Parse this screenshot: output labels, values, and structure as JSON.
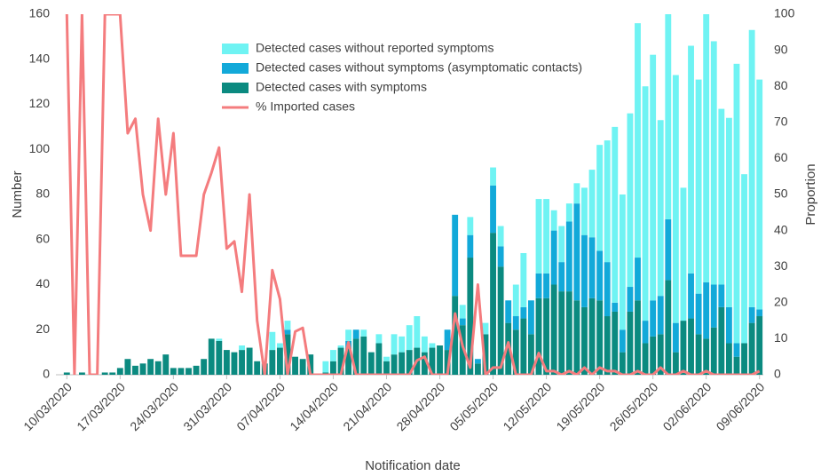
{
  "chart_data": {
    "type": "stacked-bar-line",
    "xlabel": "Notification date",
    "ylabel": "Number",
    "y2label": "Proportion",
    "categories": [
      "10/03/2020",
      null,
      null,
      null,
      null,
      null,
      null,
      "17/03/2020",
      null,
      null,
      null,
      null,
      null,
      null,
      "24/03/2020",
      null,
      null,
      null,
      null,
      null,
      null,
      "31/03/2020",
      null,
      null,
      null,
      null,
      null,
      null,
      "07/04/2020",
      null,
      null,
      null,
      null,
      null,
      null,
      "14/04/2020",
      null,
      null,
      null,
      null,
      null,
      null,
      "21/04/2020",
      null,
      null,
      null,
      null,
      null,
      null,
      "28/04/2020",
      null,
      null,
      null,
      null,
      null,
      null,
      "05/05/2020",
      null,
      null,
      null,
      null,
      null,
      null,
      "12/05/2020",
      null,
      null,
      null,
      null,
      null,
      null,
      "19/05/2020",
      null,
      null,
      null,
      null,
      null,
      null,
      "26/05/2020",
      null,
      null,
      null,
      null,
      null,
      null,
      "02/06/2020",
      null,
      null,
      null,
      null,
      null,
      null,
      "09/06/2020"
    ],
    "series": [
      {
        "name": "Detected cases with symptoms",
        "color": "#0b8a80",
        "values": [
          1,
          0,
          1,
          0,
          0,
          1,
          1,
          3,
          7,
          4,
          5,
          7,
          6,
          9,
          3,
          3,
          3,
          4,
          7,
          16,
          15,
          11,
          10,
          11,
          12,
          6,
          5,
          11,
          12,
          18,
          8,
          7,
          9,
          0,
          1,
          6,
          12,
          12,
          16,
          17,
          10,
          14,
          6,
          9,
          10,
          11,
          12,
          10,
          12,
          13,
          11,
          35,
          22,
          52,
          5,
          18,
          63,
          48,
          23,
          20,
          25,
          18,
          34,
          34,
          40,
          37,
          37,
          33,
          30,
          34,
          33,
          26,
          28,
          10,
          28,
          33,
          14,
          17,
          18,
          42,
          10,
          24,
          25,
          18,
          16,
          21,
          30,
          14,
          8,
          14,
          23,
          26
        ]
      },
      {
        "name": "Detected cases without symptoms (asymptomatic contacts)",
        "color": "#12a9d9",
        "values": [
          0,
          0,
          0,
          0,
          0,
          0,
          0,
          0,
          0,
          0,
          0,
          0,
          0,
          0,
          0,
          0,
          0,
          0,
          0,
          0,
          0,
          0,
          0,
          0,
          0,
          0,
          0,
          0,
          0,
          2,
          0,
          0,
          0,
          0,
          0,
          0,
          0,
          3,
          4,
          0,
          0,
          0,
          0,
          0,
          0,
          0,
          0,
          0,
          0,
          0,
          9,
          36,
          3,
          10,
          2,
          0,
          21,
          9,
          10,
          6,
          5,
          15,
          11,
          11,
          24,
          13,
          31,
          43,
          32,
          27,
          22,
          24,
          4,
          10,
          11,
          19,
          10,
          16,
          17,
          27,
          13,
          0,
          20,
          18,
          25,
          19,
          10,
          16,
          6,
          0,
          7,
          3
        ]
      },
      {
        "name": "Detected cases without reported symptoms",
        "color": "#6ff3f3",
        "values": [
          0,
          0,
          0,
          0,
          0,
          0,
          0,
          0,
          0,
          0,
          0,
          0,
          0,
          0,
          0,
          0,
          0,
          0,
          0,
          0,
          1,
          0,
          0,
          2,
          0,
          0,
          0,
          8,
          2,
          4,
          0,
          0,
          0,
          0,
          5,
          5,
          1,
          5,
          0,
          3,
          0,
          4,
          2,
          9,
          7,
          11,
          14,
          7,
          2,
          0,
          0,
          0,
          6,
          8,
          0,
          5,
          8,
          9,
          0,
          14,
          24,
          0,
          33,
          33,
          9,
          16,
          8,
          9,
          21,
          30,
          47,
          54,
          78,
          60,
          77,
          104,
          104,
          109,
          78,
          91,
          110,
          59,
          101,
          95,
          119,
          108,
          78,
          84,
          124,
          75,
          123,
          102
        ]
      },
      {
        "name": "% Imported cases",
        "color": "#f47c7e",
        "axis": "y2",
        "values": [
          100,
          0,
          100,
          0,
          0,
          100,
          100,
          100,
          67,
          71,
          50,
          40,
          71,
          50,
          67,
          33,
          33,
          33,
          50,
          56,
          63,
          35,
          37,
          23,
          50,
          15,
          0,
          29,
          21,
          0,
          12,
          13,
          0,
          0,
          0,
          0,
          0,
          9,
          0,
          0,
          0,
          0,
          0,
          0,
          0,
          0,
          4,
          5,
          0,
          0,
          0,
          17,
          8,
          2,
          25,
          0,
          2,
          2,
          9,
          0,
          0,
          0,
          6,
          1,
          1,
          0,
          1,
          0,
          2,
          0,
          2,
          1,
          1,
          0,
          0,
          1,
          0,
          0,
          2,
          0,
          0,
          1,
          0,
          0,
          1,
          0,
          0,
          0,
          0,
          0,
          0,
          1
        ]
      }
    ],
    "ylim": [
      0,
      160
    ],
    "yticks": [
      0,
      20,
      40,
      60,
      80,
      100,
      120,
      140,
      160
    ],
    "y2lim": [
      0,
      100
    ],
    "y2ticks": [
      0,
      10,
      20,
      30,
      40,
      50,
      60,
      70,
      80,
      90,
      100
    ],
    "legend": "top"
  }
}
